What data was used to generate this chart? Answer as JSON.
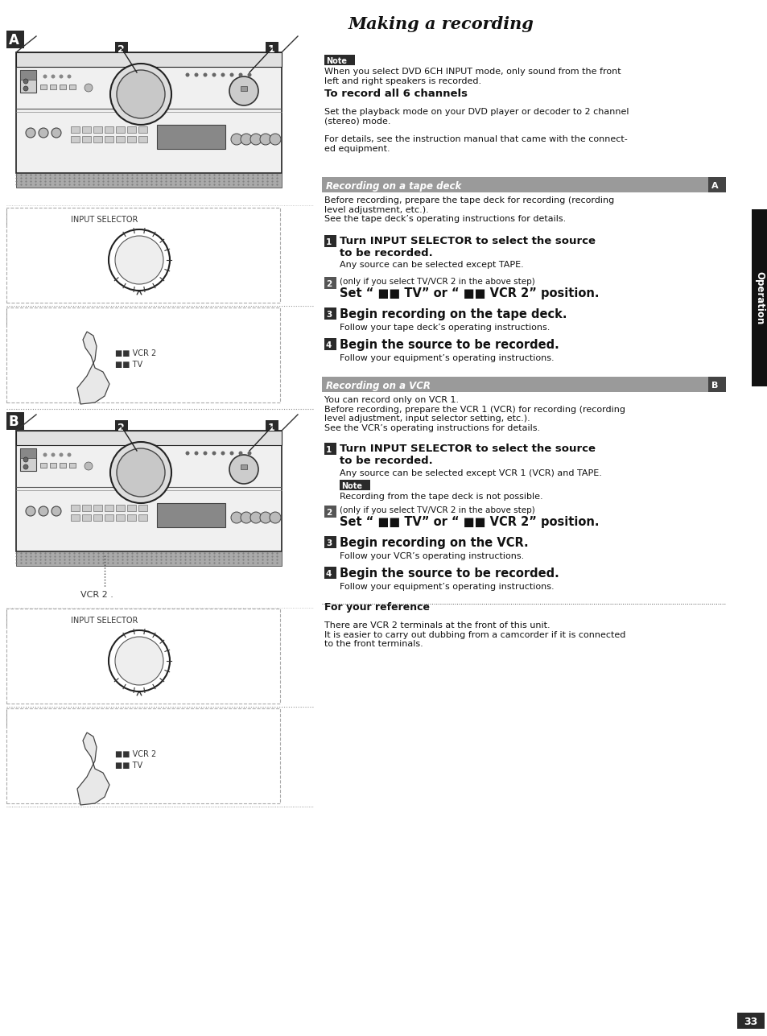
{
  "page_title": "Making a recording",
  "page_number": "33",
  "bg_color": "#ffffff",
  "section_A_label": "A",
  "section_B_label": "B",
  "note_label": "Note",
  "note1_text": "When you select DVD 6CH INPUT mode, only sound from the front\nleft and right speakers is recorded.",
  "record_all_channels_title": "To record all 6 channels",
  "record_all_channels_text": "Set the playback mode on your DVD player or decoder to 2 channel\n(stereo) mode.",
  "details_text": "For details, see the instruction manual that came with the connect-\ned equipment.",
  "section_a_header": "Recording on a tape deck",
  "section_a_before": "Before recording, prepare the tape deck for recording (recording\nlevel adjustment, etc.).\nSee the tape deck’s operating instructions for details.",
  "step1a_bold": "Turn INPUT SELECTOR to select the source\nto be recorded.",
  "step1a_normal": "Any source can be selected except TAPE.",
  "step2_small": "(only if you select TV/VCR 2 in the above step)",
  "step2a_bold": "Set “ ■■ TV” or “ ■■ VCR 2” position.",
  "step3a_bold": "Begin recording on the tape deck.",
  "step3a_normal": "Follow your tape deck’s operating instructions.",
  "step4a_bold": "Begin the source to be recorded.",
  "step4_normal": "Follow your equipment’s operating instructions.",
  "section_b_header": "Recording on a VCR",
  "section_b_intro": "You can record only on VCR 1.\nBefore recording, prepare the VCR 1 (VCR) for recording (recording\nlevel adjustment, input selector setting, etc.).\nSee the VCR’s operating instructions for details.",
  "step1b_bold": "Turn INPUT SELECTOR to select the source\nto be recorded.",
  "step1b_normal": "Any source can be selected except VCR 1 (VCR) and TAPE.",
  "step1b_note": "Recording from the tape deck is not possible.",
  "step2b_bold": "Set “ ■■ TV” or “ ■■ VCR 2” position.",
  "step3b_bold": "Begin recording on the VCR.",
  "step3b_normal": "Follow your VCR’s operating instructions.",
  "step4b_bold": "Begin the source to be recorded.",
  "for_reference_title": "For your reference",
  "for_reference_text": "There are VCR 2 terminals at the front of this unit.\nIt is easier to carry out dubbing from a camcorder if it is connected\nto the front terminals.",
  "operation_label": "Operation",
  "vcr2_label": "VCR 2 .",
  "input_selector_label": "INPUT SELECTOR",
  "vcr2_tv_labels": [
    "■■ VCR 2",
    "■■ TV"
  ]
}
